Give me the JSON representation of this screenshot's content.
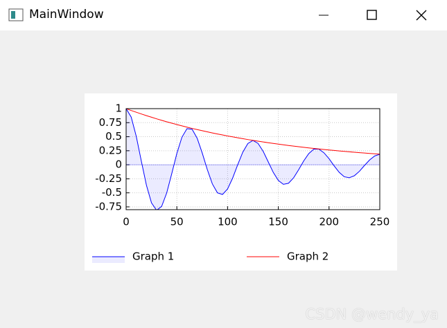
{
  "window": {
    "title": "MainWindow"
  },
  "chart_data": {
    "type": "line",
    "x": [
      0,
      5,
      10,
      15,
      20,
      25,
      30,
      35,
      40,
      45,
      50,
      55,
      60,
      65,
      70,
      75,
      80,
      85,
      90,
      95,
      100,
      105,
      110,
      115,
      120,
      125,
      130,
      135,
      140,
      145,
      150,
      155,
      160,
      165,
      170,
      175,
      180,
      185,
      190,
      195,
      200,
      205,
      210,
      215,
      220,
      225,
      230,
      235,
      240,
      245,
      250
    ],
    "series": [
      {
        "name": "Graph 1",
        "color": "#0000ff",
        "fill_color": "rgba(0,0,255,0.08)",
        "values": [
          1,
          0.849,
          0.505,
          0.064,
          -0.364,
          -0.678,
          -0.811,
          -0.742,
          -0.501,
          -0.156,
          0.203,
          0.491,
          0.644,
          0.633,
          0.473,
          0.21,
          -0.085,
          -0.342,
          -0.5,
          -0.529,
          -0.431,
          -0.236,
          0.002,
          0.225,
          0.379,
          0.434,
          0.381,
          0.242,
          0.054,
          -0.135,
          -0.279,
          -0.348,
          -0.33,
          -0.234,
          -0.089,
          0.068,
          0.199,
          0.279,
          0.279,
          0.213,
          0.108,
          -0.019,
          -0.135,
          -0.214,
          -0.231,
          -0.195,
          -0.115,
          -0.011,
          0.086,
          0.157,
          0.187
        ]
      },
      {
        "name": "Graph 2",
        "color": "#ff0000",
        "values": [
          1,
          0.967,
          0.936,
          0.905,
          0.875,
          0.847,
          0.819,
          0.792,
          0.766,
          0.741,
          0.717,
          0.693,
          0.67,
          0.648,
          0.627,
          0.607,
          0.587,
          0.567,
          0.549,
          0.531,
          0.513,
          0.497,
          0.48,
          0.465,
          0.449,
          0.435,
          0.42,
          0.407,
          0.393,
          0.38,
          0.368,
          0.356,
          0.344,
          0.333,
          0.322,
          0.311,
          0.301,
          0.291,
          0.282,
          0.273,
          0.264,
          0.255,
          0.247,
          0.239,
          0.231,
          0.223,
          0.216,
          0.209,
          0.202,
          0.195,
          0.189
        ]
      }
    ],
    "xlim": [
      0,
      250
    ],
    "xticks": [
      0,
      50,
      100,
      150,
      200,
      250
    ],
    "ylim": [
      -0.8,
      1
    ],
    "yticks": [
      -0.75,
      -0.5,
      -0.25,
      0,
      0.25,
      0.5,
      0.75,
      1
    ],
    "grid": true,
    "legend": "bottom"
  },
  "watermark": "CSDN @wendy_ya"
}
